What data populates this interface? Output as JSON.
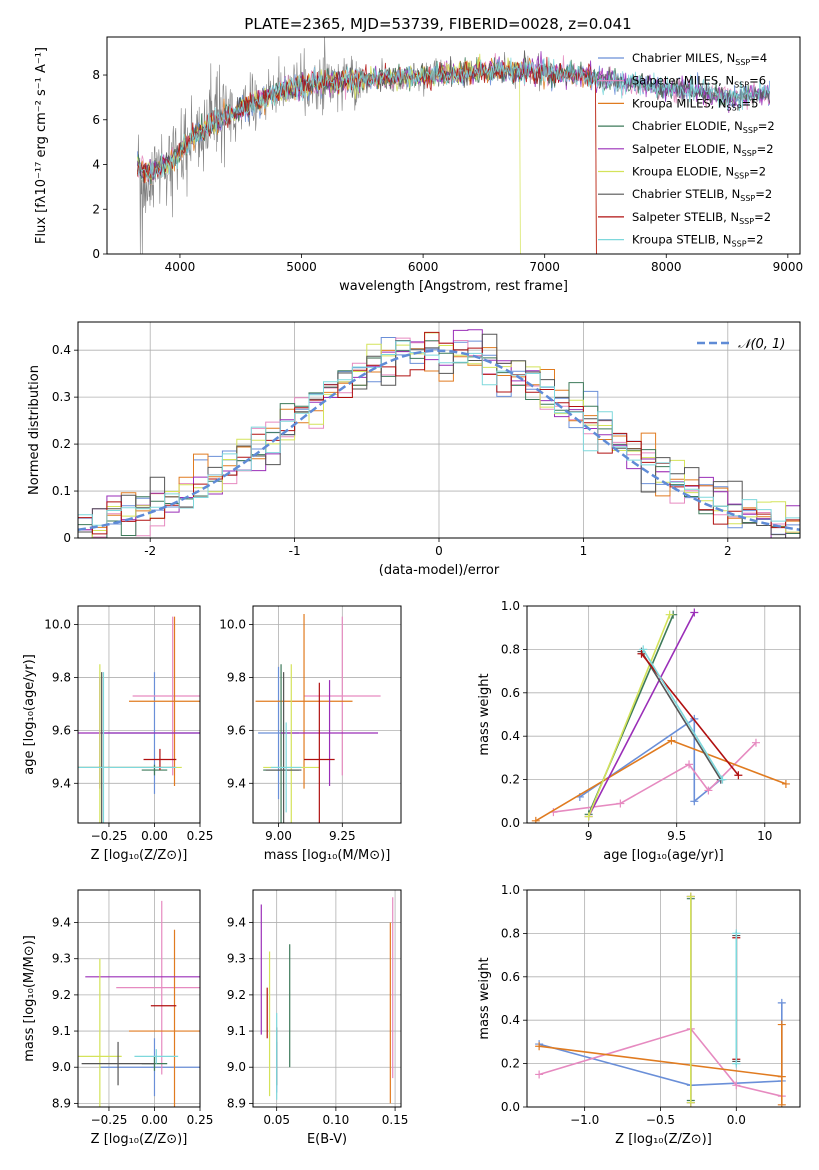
{
  "title": "PLATE=2365, MJD=53739, FIBERID=0028, z=0.041",
  "colors": {
    "chabrier_miles": "#6a8fd8",
    "salpeter_miles": "#e68ac0",
    "kroupa_miles": "#e07b20",
    "chabrier_elodie": "#3d7a5a",
    "salpeter_elodie": "#9a2eb8",
    "kroupa_elodie": "#d4e35a",
    "chabrier_stelib": "#555555",
    "salpeter_stelib": "#b01010",
    "kroupa_stelib": "#7ed8dc",
    "data": "#808080",
    "gaussian": "#5f8bd6"
  },
  "legend_entries": [
    {
      "pre": "Chabrier MILES, N",
      "sub": "SSP",
      "post": "=4",
      "color": "#6a8fd8"
    },
    {
      "pre": "Salpeter MILES, N",
      "sub": "SSP",
      "post": "=6",
      "color": "#e68ac0"
    },
    {
      "pre": "Kroupa MILES, N",
      "sub": "SSP",
      "post": "=5",
      "color": "#e07b20"
    },
    {
      "pre": "Chabrier ELODIE, N",
      "sub": "SSP",
      "post": "=2",
      "color": "#3d7a5a"
    },
    {
      "pre": "Salpeter ELODIE, N",
      "sub": "SSP",
      "post": "=2",
      "color": "#9a2eb8"
    },
    {
      "pre": "Kroupa ELODIE, N",
      "sub": "SSP",
      "post": "=2",
      "color": "#d4e35a"
    },
    {
      "pre": "Chabrier STELIB, N",
      "sub": "SSP",
      "post": "=2",
      "color": "#555555"
    },
    {
      "pre": "Salpeter STELIB, N",
      "sub": "SSP",
      "post": "=2",
      "color": "#b01010"
    },
    {
      "pre": "Kroupa STELIB, N",
      "sub": "SSP",
      "post": "=2",
      "color": "#7ed8dc"
    }
  ],
  "chart_data": [
    {
      "id": "spectrum",
      "type": "line",
      "xlabel": "wavelength [Angstrom, rest frame]",
      "ylabel": "Flux [fλ10⁻¹⁷ erg cm⁻² s⁻¹ A⁻¹]",
      "xlim": [
        3400,
        9100
      ],
      "ylim": [
        0,
        9.7
      ],
      "xticks": [
        4000,
        5000,
        6000,
        7000,
        8000,
        9000
      ],
      "yticks": [
        0,
        2,
        4,
        6,
        8
      ],
      "grid": false,
      "legend": "upper-right",
      "continuum": [
        [
          3650,
          3.9
        ],
        [
          3750,
          3.6
        ],
        [
          3850,
          4.0
        ],
        [
          3950,
          4.2
        ],
        [
          4050,
          4.9
        ],
        [
          4150,
          5.4
        ],
        [
          4300,
          5.9
        ],
        [
          4500,
          6.5
        ],
        [
          4700,
          7.0
        ],
        [
          4900,
          7.4
        ],
        [
          5100,
          7.6
        ],
        [
          5300,
          7.7
        ],
        [
          5500,
          7.8
        ],
        [
          5800,
          7.9
        ],
        [
          6100,
          8.0
        ],
        [
          6400,
          8.1
        ],
        [
          6700,
          8.2
        ],
        [
          7000,
          8.1
        ],
        [
          7300,
          8.0
        ],
        [
          7600,
          7.7
        ],
        [
          7900,
          7.5
        ],
        [
          8200,
          7.3
        ],
        [
          8500,
          7.0
        ],
        [
          8800,
          7.2
        ]
      ],
      "dropouts": [
        {
          "color": "#d4e35a",
          "x": 6800
        },
        {
          "color": "#e07b20",
          "x": 7420
        },
        {
          "color": "#b01010",
          "x": 7430
        }
      ]
    },
    {
      "id": "residuals",
      "type": "histogram",
      "xlabel": "(data-model)/error",
      "ylabel": "Normed distribution",
      "xlim": [
        -2.5,
        2.5
      ],
      "ylim": [
        0,
        0.46
      ],
      "xticks": [
        -2,
        -1,
        0,
        1,
        2
      ],
      "yticks": [
        0.0,
        0.1,
        0.2,
        0.3,
        0.4
      ],
      "grid": true,
      "legend": "upper-right",
      "legend_label": "𝒩(0, 1)",
      "bin_width": 0.1,
      "bin_start": -2.5
    },
    {
      "id": "age_vs_Z",
      "type": "errorbar",
      "xlabel": "Z [log₁₀(Z/Z⊙)]",
      "ylabel": "age  [log₁₀(age/yr)]",
      "xlim": [
        -0.42,
        0.25
      ],
      "ylim": [
        9.25,
        10.07
      ],
      "xticks": [
        -0.25,
        0.0,
        0.25
      ],
      "xticklabels": [
        "−0.25",
        "0.00",
        "0.25"
      ],
      "yticks": [
        9.4,
        9.6,
        9.8,
        10.0
      ],
      "grid": true,
      "points": [
        {
          "c": "#6a8fd8",
          "x": 0.0,
          "xe": 0.3,
          "y": 9.59,
          "ye": 0.23
        },
        {
          "c": "#e68ac0",
          "x": 0.1,
          "xe": 0.22,
          "y": 9.73,
          "ye": 0.3
        },
        {
          "c": "#e07b20",
          "x": 0.11,
          "xe": 0.25,
          "y": 9.71,
          "ye": 0.32
        },
        {
          "c": "#3d7a5a",
          "x": 0.0,
          "xe": 0.07,
          "y": 9.45,
          "ye": 0.02
        },
        {
          "c": "#9a2eb8",
          "x": -0.3,
          "xe": 0.55,
          "y": 9.59,
          "ye": 0.21
        },
        {
          "c": "#d4e35a",
          "x": -0.3,
          "xe": 0.45,
          "y": 9.46,
          "ye": 0.39
        },
        {
          "c": "#555555",
          "x": -0.29,
          "xe": 0.4,
          "y": 9.46,
          "ye": 0.36
        },
        {
          "c": "#b01010",
          "x": 0.03,
          "xe": 0.09,
          "y": 9.49,
          "ye": 0.04
        },
        {
          "c": "#7ed8dc",
          "x": -0.28,
          "xe": 0.4,
          "y": 9.46,
          "ye": 0.36
        }
      ]
    },
    {
      "id": "age_vs_mass",
      "type": "errorbar",
      "xlabel": "mass [log₁₀(M/M⊙)]",
      "ylabel": "",
      "xlim": [
        8.9,
        9.48
      ],
      "ylim": [
        9.25,
        10.07
      ],
      "xticks": [
        9.0,
        9.25
      ],
      "xticklabels": [
        "9.00",
        "9.25"
      ],
      "yticks": [
        9.4,
        9.6,
        9.8,
        10.0
      ],
      "grid": true,
      "points": [
        {
          "c": "#6a8fd8",
          "x": 9.0,
          "xe": 0.08,
          "y": 9.59,
          "ye": 0.25
        },
        {
          "c": "#e68ac0",
          "x": 9.25,
          "xe": 0.15,
          "y": 9.73,
          "ye": 0.3
        },
        {
          "c": "#e07b20",
          "x": 9.1,
          "xe": 0.19,
          "y": 9.71,
          "ye": 0.33
        },
        {
          "c": "#3d7a5a",
          "x": 9.01,
          "xe": 0.07,
          "y": 9.45,
          "ye": 0.4
        },
        {
          "c": "#9a2eb8",
          "x": 9.2,
          "xe": 0.19,
          "y": 9.59,
          "ye": 0.2
        },
        {
          "c": "#d4e35a",
          "x": 9.05,
          "xe": 0.11,
          "y": 9.46,
          "ye": 0.39
        },
        {
          "c": "#555555",
          "x": 9.02,
          "xe": 0.07,
          "y": 9.45,
          "ye": 0.37
        },
        {
          "c": "#b01010",
          "x": 9.16,
          "xe": 0.06,
          "y": 9.49,
          "ye": 0.29
        },
        {
          "c": "#7ed8dc",
          "x": 9.03,
          "xe": 0.06,
          "y": 9.46,
          "ye": 0.17
        }
      ]
    },
    {
      "id": "weight_vs_age",
      "type": "line",
      "xlabel": "age  [log₁₀(age/yr)]",
      "ylabel": "mass weight",
      "xlim": [
        8.65,
        10.2
      ],
      "ylim": [
        0,
        1.0
      ],
      "xticks": [
        9.0,
        9.5,
        10.0
      ],
      "yticks": [
        0.0,
        0.2,
        0.4,
        0.6,
        0.8,
        1.0
      ],
      "grid": true,
      "series": [
        {
          "c": "#6a8fd8",
          "pts": [
            [
              8.95,
              0.12
            ],
            [
              9.6,
              0.48
            ],
            [
              9.6,
              0.1
            ],
            [
              9.75,
              0.2
            ]
          ]
        },
        {
          "c": "#e68ac0",
          "pts": [
            [
              8.8,
              0.05
            ],
            [
              9.18,
              0.09
            ],
            [
              9.57,
              0.27
            ],
            [
              9.68,
              0.15
            ],
            [
              9.95,
              0.37
            ]
          ]
        },
        {
          "c": "#e07b20",
          "pts": [
            [
              8.7,
              0.01
            ],
            [
              9.47,
              0.38
            ],
            [
              10.12,
              0.18
            ]
          ]
        },
        {
          "c": "#3d7a5a",
          "pts": [
            [
              9.0,
              0.04
            ],
            [
              9.48,
              0.96
            ]
          ]
        },
        {
          "c": "#9a2eb8",
          "pts": [
            [
              9.0,
              0.03
            ],
            [
              9.6,
              0.97
            ]
          ]
        },
        {
          "c": "#d4e35a",
          "pts": [
            [
              9.0,
              0.03
            ],
            [
              9.46,
              0.96
            ]
          ]
        },
        {
          "c": "#555555",
          "pts": [
            [
              9.3,
              0.79
            ],
            [
              9.75,
              0.2
            ]
          ]
        },
        {
          "c": "#b01010",
          "pts": [
            [
              9.3,
              0.78
            ],
            [
              9.85,
              0.22
            ]
          ]
        },
        {
          "c": "#7ed8dc",
          "pts": [
            [
              9.31,
              0.8
            ],
            [
              9.76,
              0.2
            ]
          ]
        }
      ]
    },
    {
      "id": "mass_vs_Z",
      "type": "errorbar",
      "xlabel": "Z [log₁₀(Z/Z⊙)]",
      "ylabel": "mass [log₁₀(M/M⊙)]",
      "xlim": [
        -0.42,
        0.25
      ],
      "ylim": [
        8.89,
        9.49
      ],
      "xticks": [
        -0.25,
        0.0,
        0.25
      ],
      "xticklabels": [
        "−0.25",
        "0.00",
        "0.25"
      ],
      "yticks": [
        8.9,
        9.0,
        9.1,
        9.2,
        9.3,
        9.4
      ],
      "grid": true,
      "points": [
        {
          "c": "#6a8fd8",
          "x": 0.0,
          "xe": 0.3,
          "y": 9.0,
          "ye": 0.08
        },
        {
          "c": "#e68ac0",
          "x": 0.04,
          "xe": 0.25,
          "y": 9.22,
          "ye": 0.24
        },
        {
          "c": "#e07b20",
          "x": 0.11,
          "xe": 0.25,
          "y": 9.1,
          "ye": 0.28
        },
        {
          "c": "#3d7a5a",
          "x": 0.0,
          "xe": 0.07,
          "y": 9.01,
          "ye": 0.02
        },
        {
          "c": "#9a2eb8",
          "x": 0.0,
          "xe": 0.38,
          "y": 9.25,
          "ye": 0.0
        },
        {
          "c": "#d4e35a",
          "x": -0.3,
          "xe": 0.12,
          "y": 9.03,
          "ye": 0.27
        },
        {
          "c": "#555555",
          "x": -0.2,
          "xe": 0.2,
          "y": 9.01,
          "ye": 0.06
        },
        {
          "c": "#b01010",
          "x": 0.05,
          "xe": 0.07,
          "y": 9.17,
          "ye": 0.0
        },
        {
          "c": "#7ed8dc",
          "x": 0.01,
          "xe": 0.12,
          "y": 9.03,
          "ye": 0.02
        }
      ]
    },
    {
      "id": "mass_vs_ebv",
      "type": "errorbar",
      "xlabel": "E(B-V)",
      "ylabel": "",
      "xlim": [
        0.03,
        0.155
      ],
      "ylim": [
        8.89,
        9.49
      ],
      "xticks": [
        0.05,
        0.1,
        0.15
      ],
      "xticklabels": [
        "0.05",
        "0.10",
        "0.15"
      ],
      "yticks": [
        8.9,
        9.0,
        9.1,
        9.2,
        9.3,
        9.4
      ],
      "grid": true,
      "points": [
        {
          "c": "#6a8fd8",
          "x": 0.05,
          "xe": 0,
          "y": 9.0,
          "ye": 0.07
        },
        {
          "c": "#e68ac0",
          "x": 0.148,
          "xe": 0,
          "y": 9.22,
          "ye": 0.25
        },
        {
          "c": "#e07b20",
          "x": 0.146,
          "xe": 0,
          "y": 9.15,
          "ye": 0.25
        },
        {
          "c": "#3d7a5a",
          "x": 0.061,
          "xe": 0,
          "y": 9.17,
          "ye": 0.17
        },
        {
          "c": "#9a2eb8",
          "x": 0.037,
          "xe": 0,
          "y": 9.27,
          "ye": 0.18
        },
        {
          "c": "#d4e35a",
          "x": 0.044,
          "xe": 0,
          "y": 9.12,
          "ye": 0.2
        },
        {
          "c": "#555555",
          "x": 0.05,
          "xe": 0,
          "y": 9.03,
          "ye": 0.08
        },
        {
          "c": "#b01010",
          "x": 0.042,
          "xe": 0,
          "y": 9.15,
          "ye": 0.07
        },
        {
          "c": "#7ed8dc",
          "x": 0.05,
          "xe": 0,
          "y": 9.03,
          "ye": 0.12
        }
      ]
    },
    {
      "id": "weight_vs_Z",
      "type": "line",
      "xlabel": "Z [log₁₀(Z/Z⊙)]",
      "ylabel": "mass weight",
      "xlim": [
        -1.38,
        0.42
      ],
      "ylim": [
        0,
        1.0
      ],
      "xticks": [
        -1.0,
        -0.5,
        0.0
      ],
      "xticklabels": [
        "−1.0",
        "−0.5",
        "0.0"
      ],
      "yticks": [
        0.0,
        0.2,
        0.4,
        0.6,
        0.8,
        1.0
      ],
      "grid": true,
      "series": [
        {
          "c": "#6a8fd8",
          "pts": [
            [
              -1.3,
              0.29
            ],
            [
              -0.3,
              0.1
            ],
            [
              0.3,
              0.12
            ],
            [
              0.3,
              0.48
            ]
          ]
        },
        {
          "c": "#e68ac0",
          "pts": [
            [
              -1.3,
              0.15
            ],
            [
              -0.3,
              0.36
            ],
            [
              0.0,
              0.1
            ],
            [
              0.3,
              0.05
            ]
          ]
        },
        {
          "c": "#e07b20",
          "pts": [
            [
              -1.3,
              0.28
            ],
            [
              0.3,
              0.14
            ],
            [
              0.3,
              0.01
            ],
            [
              0.3,
              0.38
            ]
          ]
        },
        {
          "c": "#3d7a5a",
          "pts": [
            [
              -0.3,
              0.03
            ],
            [
              -0.3,
              0.96
            ]
          ]
        },
        {
          "c": "#9a2eb8",
          "pts": [
            [
              -0.3,
              0.02
            ],
            [
              -0.3,
              0.97
            ]
          ]
        },
        {
          "c": "#d4e35a",
          "pts": [
            [
              -0.3,
              0.02
            ],
            [
              -0.3,
              0.97
            ]
          ]
        },
        {
          "c": "#555555",
          "pts": [
            [
              0.0,
              0.79
            ],
            [
              0.0,
              0.21
            ]
          ]
        },
        {
          "c": "#b01010",
          "pts": [
            [
              0.0,
              0.78
            ],
            [
              0.0,
              0.22
            ]
          ]
        },
        {
          "c": "#7ed8dc",
          "pts": [
            [
              0.0,
              0.8
            ],
            [
              0.0,
              0.2
            ]
          ]
        }
      ]
    }
  ]
}
